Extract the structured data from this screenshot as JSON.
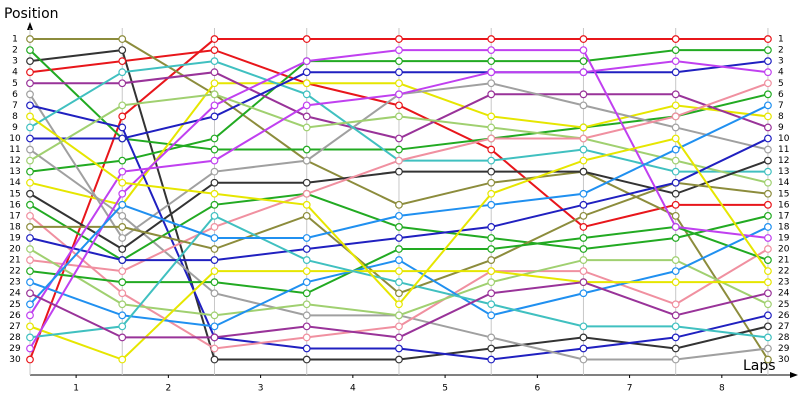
{
  "chart_data": {
    "type": "line",
    "y_title": "Position",
    "x_title": "Laps",
    "x": [
      0,
      1,
      2,
      3,
      4,
      5,
      6,
      7,
      8
    ],
    "xlim": [
      0,
      8.25
    ],
    "xticks": [
      {
        "value": 0.5,
        "label": "1"
      },
      {
        "value": 1.5,
        "label": "2"
      },
      {
        "value": 2.5,
        "label": "3"
      },
      {
        "value": 3.5,
        "label": "4"
      },
      {
        "value": 4.5,
        "label": "5"
      },
      {
        "value": 5.5,
        "label": "6"
      },
      {
        "value": 6.5,
        "label": "7"
      },
      {
        "value": 7.5,
        "label": "8"
      }
    ],
    "ylim": [
      31.4,
      0
    ],
    "yticks": [
      1,
      2,
      3,
      4,
      5,
      6,
      7,
      8,
      9,
      10,
      11,
      12,
      13,
      14,
      15,
      16,
      17,
      18,
      19,
      20,
      21,
      22,
      23,
      24,
      25,
      26,
      27,
      28,
      29,
      30
    ],
    "grid": true,
    "series": [
      {
        "color": "#e8161b",
        "values": [
          30,
          8,
          1,
          1,
          1,
          1,
          1,
          1,
          1
        ]
      },
      {
        "color": "#e8161b",
        "values": [
          4,
          3,
          2,
          5,
          7,
          11,
          18,
          16,
          16
        ]
      },
      {
        "color": "#8c8c3c",
        "values": [
          1,
          1,
          6,
          12,
          16,
          14,
          13,
          17,
          30
        ]
      },
      {
        "color": "#333333",
        "values": [
          3,
          2,
          30,
          30,
          30,
          29,
          28,
          29,
          27
        ]
      },
      {
        "color": "#22aa22",
        "values": [
          2,
          10,
          11,
          11,
          11,
          10,
          9,
          8,
          6
        ]
      },
      {
        "color": "#22aa22",
        "values": [
          13,
          12,
          10,
          3,
          3,
          3,
          3,
          2,
          2
        ]
      },
      {
        "color": "#e6e600",
        "values": [
          14,
          16,
          5,
          5,
          5,
          8,
          9,
          7,
          8
        ]
      },
      {
        "color": "#993399",
        "values": [
          5,
          5,
          4,
          8,
          10,
          6,
          6,
          6,
          9
        ]
      },
      {
        "color": "#a0a0a0",
        "values": [
          6,
          19,
          13,
          12,
          6,
          5,
          7,
          9,
          11
        ]
      },
      {
        "color": "#2020c0",
        "values": [
          7,
          9,
          28,
          29,
          29,
          30,
          29,
          28,
          26
        ]
      },
      {
        "color": "#40c0c0",
        "values": [
          9,
          4,
          3,
          6,
          12,
          12,
          11,
          13,
          13
        ]
      },
      {
        "color": "#2020c0",
        "values": [
          10,
          10,
          8,
          4,
          4,
          4,
          4,
          4,
          3
        ]
      },
      {
        "color": "#a0a0a0",
        "values": [
          11,
          17,
          24,
          26,
          26,
          28,
          30,
          30,
          29
        ]
      },
      {
        "color": "#a0d070",
        "values": [
          12,
          7,
          6,
          9,
          8,
          9,
          10,
          12,
          14
        ]
      },
      {
        "color": "#333333",
        "values": [
          15,
          20,
          14,
          14,
          13,
          13,
          13,
          15,
          12
        ]
      },
      {
        "color": "#22aa22",
        "values": [
          16,
          21,
          16,
          15,
          18,
          19,
          20,
          19,
          17
        ]
      },
      {
        "color": "#f090a0",
        "values": [
          17,
          24,
          29,
          28,
          27,
          22,
          22,
          25,
          20
        ]
      },
      {
        "color": "#f090a0",
        "values": [
          21,
          22,
          18,
          15,
          12,
          10,
          10,
          8,
          5
        ]
      },
      {
        "color": "#8c8c3c",
        "values": [
          18,
          18,
          20,
          17,
          24,
          21,
          17,
          14,
          15
        ]
      },
      {
        "color": "#2020c0",
        "values": [
          19,
          21,
          21,
          20,
          19,
          18,
          16,
          14,
          10
        ]
      },
      {
        "color": "#a0d070",
        "values": [
          20,
          25,
          26,
          25,
          26,
          23,
          21,
          21,
          25
        ]
      },
      {
        "color": "#22aa22",
        "values": [
          22,
          23,
          23,
          24,
          20,
          20,
          19,
          18,
          21
        ]
      },
      {
        "color": "#2090f0",
        "values": [
          23,
          26,
          27,
          23,
          21,
          26,
          24,
          22,
          18
        ]
      },
      {
        "color": "#c040f0",
        "values": [
          26,
          13,
          12,
          7,
          6,
          4,
          4,
          3,
          4
        ]
      },
      {
        "color": "#e6e600",
        "values": [
          27,
          30,
          22,
          22,
          22,
          22,
          23,
          23,
          23
        ]
      },
      {
        "color": "#40c0c0",
        "values": [
          28,
          27,
          17,
          21,
          23,
          25,
          27,
          27,
          28
        ]
      },
      {
        "color": "#c040f0",
        "values": [
          29,
          15,
          7,
          3,
          2,
          2,
          2,
          18,
          19
        ]
      },
      {
        "color": "#2090f0",
        "values": [
          25,
          16,
          19,
          19,
          17,
          16,
          15,
          11,
          7
        ]
      },
      {
        "color": "#993399",
        "values": [
          24,
          28,
          28,
          27,
          28,
          24,
          23,
          26,
          24
        ]
      },
      {
        "color": "#e6e600",
        "values": [
          8,
          14,
          15,
          16,
          25,
          15,
          12,
          10,
          22
        ]
      }
    ]
  }
}
